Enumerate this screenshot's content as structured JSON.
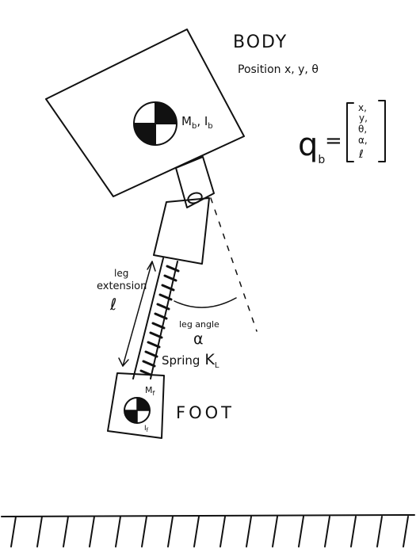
{
  "body": {
    "title": "BODY",
    "position_label": "Position x, y, θ",
    "mass_label": "M",
    "mass_sub": "b",
    "inertia_label": ", I",
    "inertia_sub": "b"
  },
  "state_vector": {
    "lhs": "q",
    "lhs_sub": "b",
    "entries": [
      "x,",
      "y,",
      "θ,",
      "α,",
      "ℓ"
    ]
  },
  "leg": {
    "extension_line1": "leg",
    "extension_line2": "extension",
    "extension_symbol": "ℓ",
    "angle_label": "leg angle",
    "angle_symbol": "α",
    "spring_label": "Spring",
    "spring_symbol": "K",
    "spring_sub": "L"
  },
  "foot": {
    "title": "FOOT",
    "mass_label": "M",
    "mass_sub": "f",
    "inertia_label": "I",
    "inertia_sub": "f"
  }
}
